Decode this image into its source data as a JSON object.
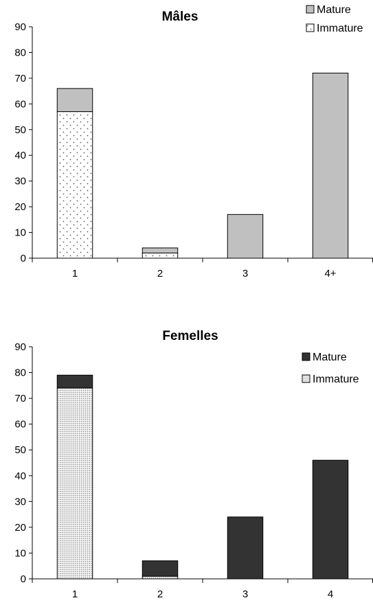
{
  "chart_data": [
    {
      "type": "bar",
      "stacked": true,
      "title": "Mâles",
      "categories": [
        "1",
        "2",
        "3",
        "4+"
      ],
      "series": [
        {
          "name": "Immature",
          "values": [
            57,
            2,
            0,
            0
          ],
          "color": "#ffffff",
          "pattern": "sparse-dots"
        },
        {
          "name": "Mature",
          "values": [
            9,
            2,
            17,
            72
          ],
          "color": "#c0c0c0",
          "pattern": "solid"
        }
      ],
      "ylim": [
        0,
        90
      ],
      "yticks": [
        "0",
        "10",
        "20",
        "30",
        "40",
        "50",
        "60",
        "70",
        "80",
        "90"
      ],
      "grid": false,
      "legend": {
        "position": "top-right",
        "order": [
          "Mature",
          "Immature"
        ]
      }
    },
    {
      "type": "bar",
      "stacked": true,
      "title": "Femelles",
      "categories": [
        "1",
        "2",
        "3",
        "4"
      ],
      "series": [
        {
          "name": "Immature",
          "values": [
            74,
            1,
            0,
            0
          ],
          "color": "#d4d4d4",
          "pattern": "dense-dots"
        },
        {
          "name": "Mature",
          "values": [
            5,
            6,
            24,
            46
          ],
          "color": "#333333",
          "pattern": "solid"
        }
      ],
      "ylim": [
        0,
        90
      ],
      "yticks": [
        "0",
        "10",
        "20",
        "30",
        "40",
        "50",
        "60",
        "70",
        "80",
        "90"
      ],
      "grid": false,
      "legend": {
        "position": "top-right",
        "order": [
          "Mature",
          "Immature"
        ]
      }
    }
  ]
}
